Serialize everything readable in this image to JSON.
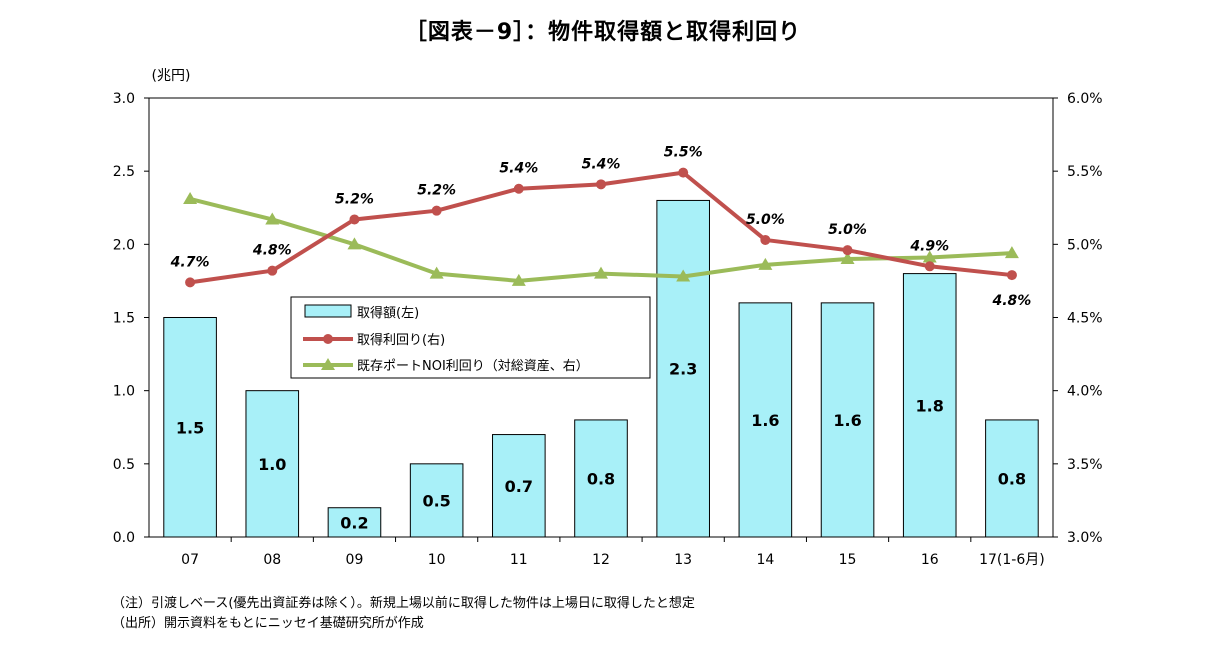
{
  "title": "［図表－9］：物件取得額と取得利回り",
  "notes": {
    "note1": "（注）引渡しベース(優先出資証券は除く）。新規上場以前に取得した物件は上場日に取得したと想定",
    "note2": "（出所）開示資料をもとにニッセイ基礎研究所が作成"
  },
  "colors": {
    "bar_fill": "#a8f0f8",
    "bar_stroke": "#000000",
    "yield_line": "#c0504d",
    "noi_line": "#9bbb59"
  },
  "chart_data": {
    "type": "bar",
    "title": "［図表－9］：物件取得額と取得利回り",
    "categories": [
      "07",
      "08",
      "09",
      "10",
      "11",
      "12",
      "13",
      "14",
      "15",
      "16",
      "17(1-6月)"
    ],
    "left_axis": {
      "unit_label": "(兆円)",
      "ylim": [
        0,
        3.0
      ],
      "ticks": [
        "0.0",
        "0.5",
        "1.0",
        "1.5",
        "2.0",
        "2.5",
        "3.0"
      ]
    },
    "right_axis": {
      "ylim": [
        3.0,
        6.0
      ],
      "ticks": [
        "3.0%",
        "3.5%",
        "4.0%",
        "4.5%",
        "5.0%",
        "5.5%",
        "6.0%"
      ]
    },
    "series": [
      {
        "name": "取得額(左)",
        "type": "bar",
        "axis": "left",
        "values": [
          1.5,
          1.0,
          0.2,
          0.5,
          0.7,
          0.8,
          2.3,
          1.6,
          1.6,
          1.8,
          0.8
        ],
        "labels": [
          "1.5",
          "1.0",
          "0.2",
          "0.5",
          "0.7",
          "0.8",
          "2.3",
          "1.6",
          "1.6",
          "1.8",
          "0.8"
        ]
      },
      {
        "name": "取得利回り(右)",
        "type": "line",
        "axis": "right",
        "values": [
          4.74,
          4.82,
          5.17,
          5.23,
          5.38,
          5.41,
          5.49,
          5.03,
          4.96,
          4.85,
          4.79
        ],
        "labels": [
          "4.7%",
          "4.8%",
          "5.2%",
          "5.2%",
          "5.4%",
          "5.4%",
          "5.5%",
          "5.0%",
          "5.0%",
          "4.9%",
          "4.8%"
        ]
      },
      {
        "name": "既存ポートNOI利回り（対総資産、右）",
        "type": "line",
        "axis": "right",
        "values": [
          5.31,
          5.17,
          5.0,
          4.8,
          4.75,
          4.8,
          4.78,
          4.86,
          4.9,
          4.91,
          4.94
        ]
      }
    ],
    "legend": "center-left"
  }
}
